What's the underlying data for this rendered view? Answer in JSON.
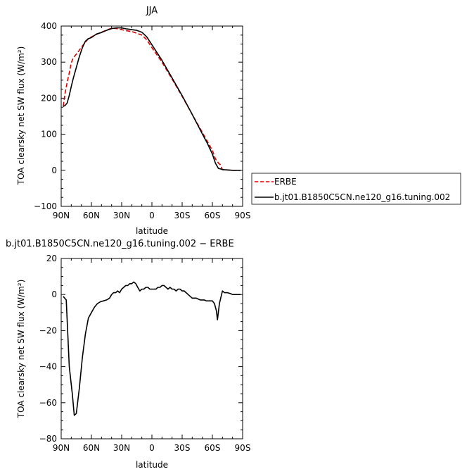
{
  "chart_data": [
    {
      "type": "line",
      "title": "JJA",
      "xlabel": "latitude",
      "ylabel": "TOA clearsky net SW flux (W/m²)",
      "xlim": [
        90,
        -90
      ],
      "ylim": [
        -100,
        400
      ],
      "x_ticks": [
        {
          "value": 90,
          "label": "90N"
        },
        {
          "value": 60,
          "label": "60N"
        },
        {
          "value": 30,
          "label": "30N"
        },
        {
          "value": 0,
          "label": "0"
        },
        {
          "value": -30,
          "label": "30S"
        },
        {
          "value": -60,
          "label": "60S"
        },
        {
          "value": -90,
          "label": "90S"
        }
      ],
      "y_ticks": [
        -100,
        0,
        100,
        200,
        300,
        400
      ],
      "legend_position": "right",
      "series": [
        {
          "name": "ERBE",
          "color": "#dd0000",
          "style": "dashed",
          "x": [
            88,
            86,
            84,
            82,
            80,
            78,
            75,
            72,
            69,
            66,
            63,
            60,
            55,
            50,
            45,
            40,
            35,
            30,
            25,
            20,
            15,
            10,
            5,
            0,
            -10,
            -20,
            -30,
            -40,
            -50,
            -55,
            -60,
            -63,
            -66,
            -68,
            -70,
            -75,
            -80,
            -85,
            -88
          ],
          "y": [
            178,
            215,
            245,
            270,
            298,
            312,
            322,
            333,
            345,
            355,
            365,
            370,
            377,
            383,
            389,
            394,
            393,
            390,
            387,
            385,
            380,
            375,
            362,
            340,
            300,
            253,
            205,
            155,
            105,
            80,
            55,
            32,
            20,
            15,
            2,
            1,
            0,
            0,
            0
          ]
        },
        {
          "name": "b.jt01.B1850C5CN.ne120_g16.tuning.002",
          "color": "#000000",
          "style": "solid",
          "x": [
            88,
            86,
            84,
            82,
            80,
            78,
            75,
            72,
            69,
            66,
            63,
            60,
            55,
            50,
            45,
            40,
            35,
            30,
            25,
            20,
            15,
            10,
            5,
            0,
            -10,
            -20,
            -30,
            -40,
            -50,
            -55,
            -60,
            -63,
            -66,
            -68,
            -70,
            -75,
            -80,
            -85,
            -88
          ],
          "y": [
            177,
            180,
            187,
            208,
            232,
            255,
            285,
            315,
            340,
            358,
            365,
            368,
            378,
            382,
            388,
            393,
            395,
            395,
            392,
            390,
            388,
            383,
            370,
            348,
            305,
            256,
            207,
            155,
            101,
            75,
            45,
            20,
            5,
            4,
            2,
            1,
            0,
            0,
            0
          ]
        }
      ]
    },
    {
      "type": "line",
      "title": "b.jt01.B1850C5CN.ne120_g16.tuning.002 − ERBE",
      "xlabel": "latitude",
      "ylabel": "TOA clearsky net SW flux (W/m²)",
      "xlim": [
        90,
        -90
      ],
      "ylim": [
        -80,
        20
      ],
      "x_ticks": [
        {
          "value": 90,
          "label": "90N"
        },
        {
          "value": 60,
          "label": "60N"
        },
        {
          "value": 30,
          "label": "30N"
        },
        {
          "value": 0,
          "label": "0"
        },
        {
          "value": -30,
          "label": "30S"
        },
        {
          "value": -60,
          "label": "60S"
        },
        {
          "value": -90,
          "label": "90S"
        }
      ],
      "y_ticks": [
        -80,
        -60,
        -40,
        -20,
        0,
        20
      ],
      "series": [
        {
          "color": "#000000",
          "style": "solid",
          "x": [
            88,
            85,
            82,
            79,
            77,
            75,
            72,
            69,
            66,
            63,
            60,
            57,
            54,
            51,
            48,
            45,
            42,
            40,
            38,
            36,
            34,
            32,
            30,
            28,
            26,
            24,
            22,
            20,
            18,
            16,
            14,
            12,
            10,
            8,
            6,
            4,
            2,
            0,
            -2,
            -4,
            -6,
            -8,
            -10,
            -12,
            -14,
            -16,
            -18,
            -20,
            -22,
            -24,
            -26,
            -28,
            -30,
            -32,
            -34,
            -36,
            -38,
            -40,
            -42,
            -44,
            -46,
            -48,
            -50,
            -52,
            -54,
            -56,
            -58,
            -60,
            -62,
            -64,
            -65,
            -67,
            -70,
            -72,
            -75,
            -78,
            -80,
            -84,
            -88
          ],
          "y": [
            -1,
            -3,
            -40,
            -55,
            -67,
            -66,
            -52,
            -35,
            -22,
            -13,
            -10,
            -7,
            -5,
            -4,
            -3.5,
            -3,
            -2,
            0,
            1,
            1,
            2,
            1,
            3,
            4,
            5,
            5,
            6,
            6,
            7,
            6,
            4,
            2,
            3,
            3,
            4,
            4,
            3,
            3,
            3,
            3,
            4,
            4,
            5,
            5,
            4,
            3,
            4,
            3,
            3,
            2,
            3,
            3,
            2,
            2,
            1,
            0,
            -1,
            -2,
            -2,
            -2,
            -2.5,
            -3,
            -3,
            -3,
            -3.5,
            -3.5,
            -3.5,
            -3.5,
            -5,
            -9,
            -14,
            -5,
            2,
            1,
            1,
            0.5,
            0,
            0,
            0
          ]
        }
      ]
    }
  ]
}
